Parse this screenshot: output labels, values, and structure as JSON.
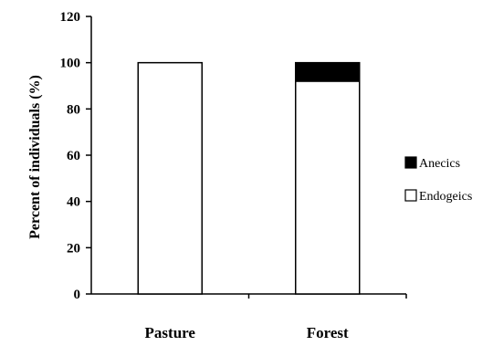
{
  "chart_data": {
    "type": "bar",
    "stacked": true,
    "categories": [
      "Pasture",
      "Forest"
    ],
    "series": [
      {
        "name": "Endogeics",
        "values": [
          100,
          92
        ],
        "color": "#ffffff"
      },
      {
        "name": "Anecics",
        "values": [
          0,
          8
        ],
        "color": "#000000"
      }
    ],
    "title": "",
    "xlabel": "",
    "ylabel": "Percent of individuals (%)",
    "ylim": [
      0,
      120
    ],
    "yticks": [
      "0",
      "20",
      "40",
      "60",
      "80",
      "100",
      "120"
    ],
    "grid": false,
    "legend_position": "right"
  }
}
